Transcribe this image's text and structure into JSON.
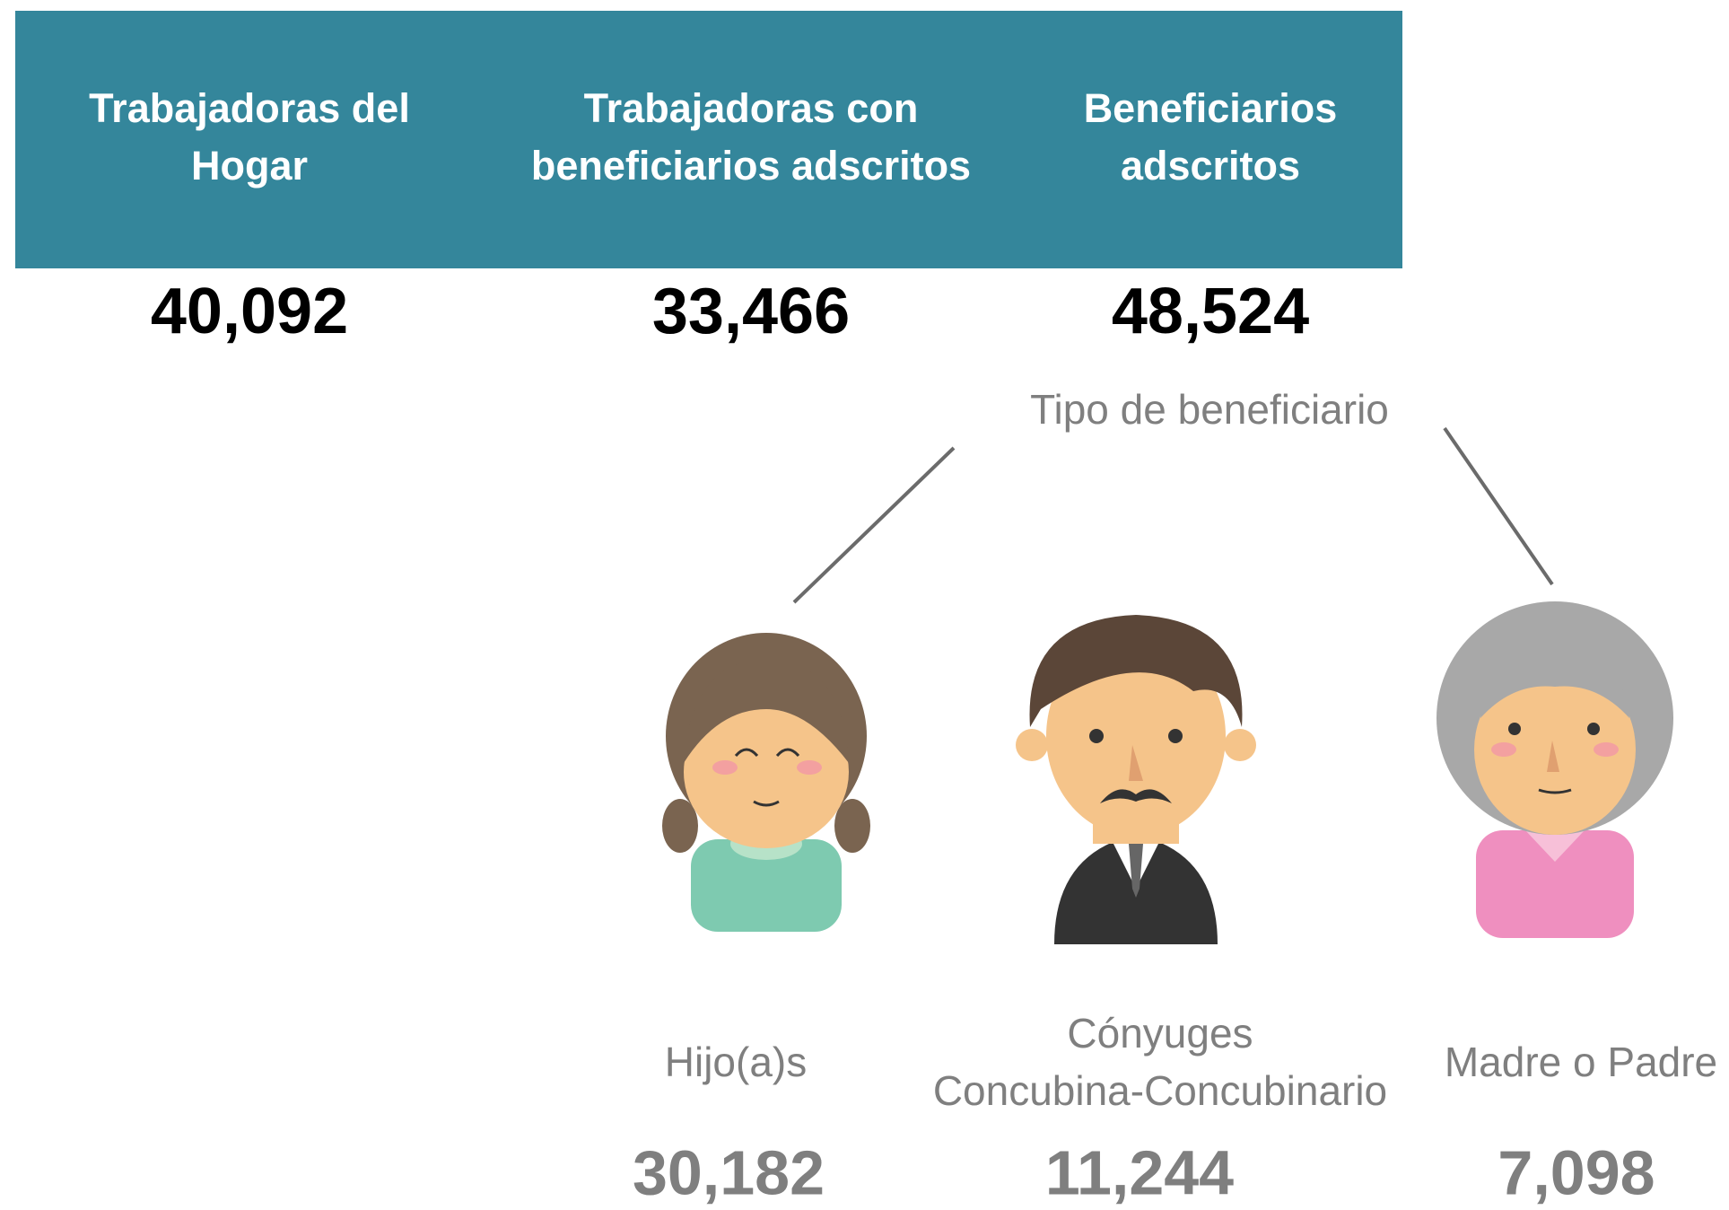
{
  "header": {
    "columns": [
      {
        "title_lines": [
          "Trabajadoras del",
          "Hogar"
        ],
        "value": "40,092"
      },
      {
        "title_lines": [
          "Trabajadoras con",
          "beneficiarios adscritos"
        ],
        "value": "33,466"
      },
      {
        "title_lines": [
          "Beneficiarios",
          "adscritos"
        ],
        "value": "48,524"
      }
    ]
  },
  "breakdown": {
    "title": "Tipo de beneficiario",
    "items": [
      {
        "label_lines": [
          "Hijo(a)s"
        ],
        "value": "30,182"
      },
      {
        "label_lines": [
          "Cónyuges",
          "Concubina-Concubinario"
        ],
        "value": "11,244"
      },
      {
        "label_lines": [
          "Madre o Padre"
        ],
        "value": "7,098"
      }
    ]
  }
}
